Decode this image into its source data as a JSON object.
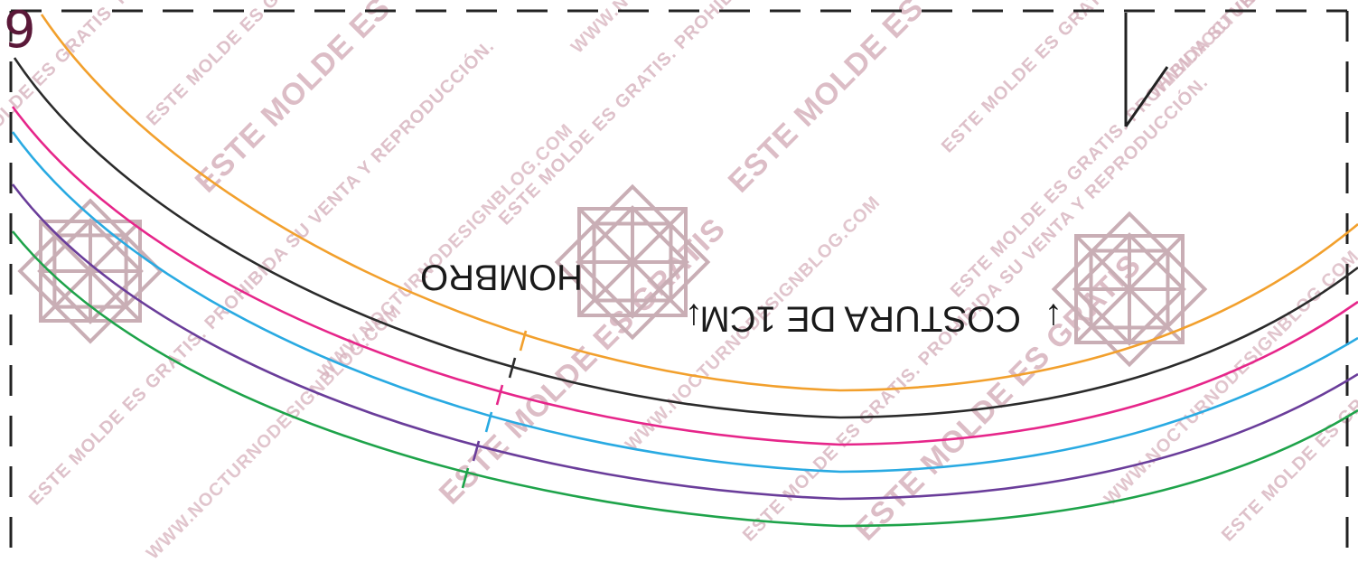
{
  "page": {
    "number": "9"
  },
  "labels": {
    "shoulder": "HOMBRO",
    "seam": "COSTURA DE 1CM",
    "arrow_glyph": "↓"
  },
  "watermarks": {
    "big": "ESTE MOLDE ES GRATIS",
    "notice": "ESTE MOLDE ES GRATIS. PROHIBIDA SU VENTA Y REPRODUCCIÓN.",
    "website": "WWW.NOCTURNODESIGNBLOG.COM"
  },
  "colors": {
    "border": "#222222",
    "size_lines": [
      "#f2a02d",
      "#2b2b2b",
      "#e6268a",
      "#29aae2",
      "#6a3d9a",
      "#1ea34a"
    ],
    "watermark": "#d7b2bd",
    "logo": "#c9aeb5",
    "page_number": "#5a1838"
  },
  "icons": [
    "grain-line-icon",
    "logo-icon",
    "arrow-down-icon"
  ]
}
